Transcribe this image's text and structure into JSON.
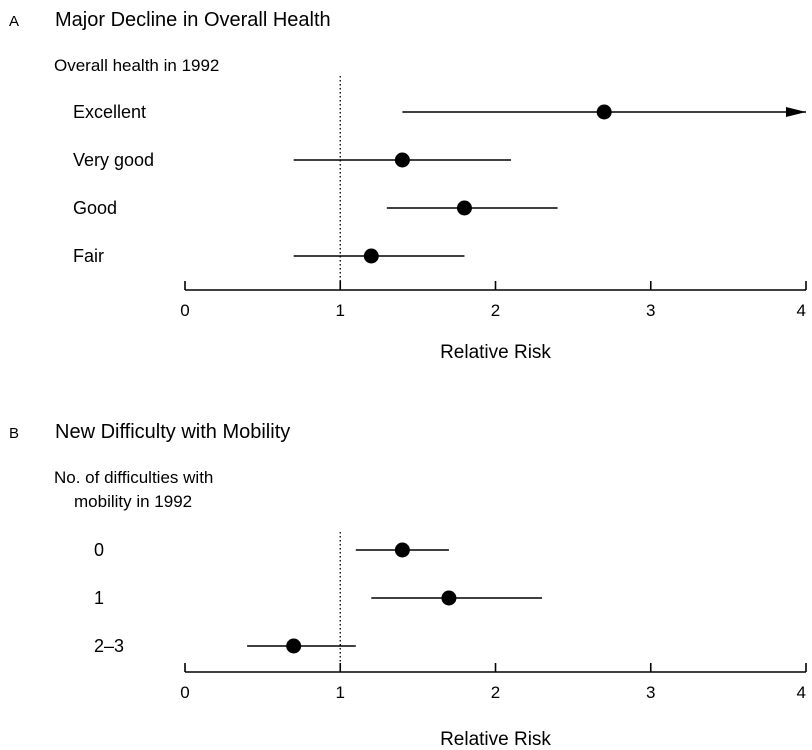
{
  "chart_data": [
    {
      "type": "scatter",
      "panel_letter": "A",
      "title": "Major Decline in Overall Health",
      "group_label_lines": [
        "Overall health in 1992"
      ],
      "xlabel": "Relative Risk",
      "xlim": [
        0,
        4
      ],
      "x_ticks": [
        0,
        1,
        2,
        3,
        4
      ],
      "reference_line": 1,
      "rows": [
        {
          "label": "Excellent",
          "estimate": 2.7,
          "lower": 1.4,
          "upper": 4.0,
          "upper_arrow": true
        },
        {
          "label": "Very good",
          "estimate": 1.4,
          "lower": 0.7,
          "upper": 2.1,
          "upper_arrow": false
        },
        {
          "label": "Good",
          "estimate": 1.8,
          "lower": 1.3,
          "upper": 2.4,
          "upper_arrow": false
        },
        {
          "label": "Fair",
          "estimate": 1.2,
          "lower": 0.7,
          "upper": 1.8,
          "upper_arrow": false
        }
      ]
    },
    {
      "type": "scatter",
      "panel_letter": "B",
      "title": "New Difficulty with Mobility",
      "group_label_lines": [
        "No. of difficulties with",
        "mobility in 1992"
      ],
      "xlabel": "Relative Risk",
      "xlim": [
        0,
        4
      ],
      "x_ticks": [
        0,
        1,
        2,
        3,
        4
      ],
      "reference_line": 1,
      "rows": [
        {
          "label": "0",
          "estimate": 1.4,
          "lower": 1.1,
          "upper": 1.7,
          "upper_arrow": false
        },
        {
          "label": "1",
          "estimate": 1.7,
          "lower": 1.2,
          "upper": 2.3,
          "upper_arrow": false
        },
        {
          "label": "2–3",
          "estimate": 0.7,
          "lower": 0.4,
          "upper": 1.1,
          "upper_arrow": false
        }
      ]
    }
  ]
}
